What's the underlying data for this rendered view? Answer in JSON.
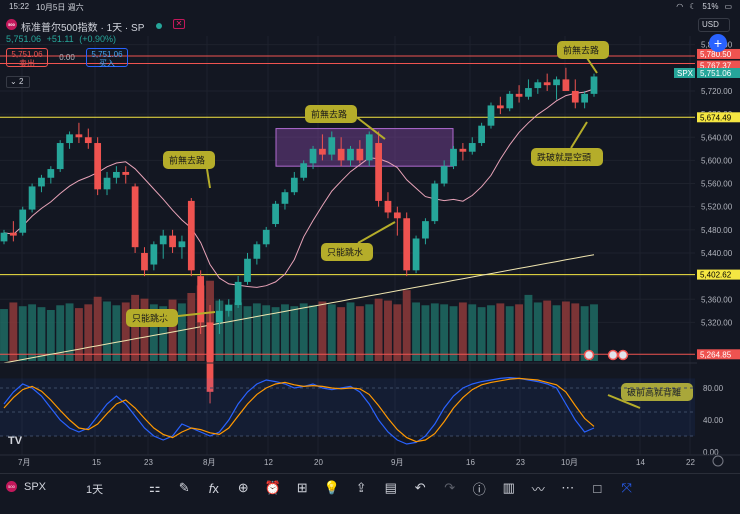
{
  "status_bar": {
    "time": "15:22",
    "date": "10月5日 週六",
    "battery": "51%"
  },
  "symbol": {
    "logo_text": "500",
    "title": "标准普尔500指数 · 1天 · SP",
    "price_line": [
      "5,751.06",
      "+51.11",
      "(+0.90%)"
    ],
    "sell_price": "5,751.06",
    "sell_label": "卖出",
    "spread": "0.00",
    "buy_price": "5,751.06",
    "buy_label": "买入",
    "indicator_count": "2",
    "currency": "USD"
  },
  "colors": {
    "up": "#26a69a",
    "down": "#ef5350",
    "yellow": "#f5e642",
    "annot": "#b5ad2a",
    "accent": "#2962ff",
    "bg": "#131722"
  },
  "annotations": [
    "前無去路",
    "只能跳水",
    "前無去路",
    "只能跳水",
    "前無去路",
    "跌破就是空頭",
    "破前高就背離"
  ],
  "price_axis": {
    "ticks": [
      "5,800.00",
      "5,720.00",
      "5,680.00",
      "5,640.00",
      "5,600.00",
      "5,560.00",
      "5,520.00",
      "5,480.00",
      "5,440.00",
      "5,400.00",
      "5,360.00",
      "5,320.00"
    ],
    "labels": [
      {
        "text": "5,780.50",
        "kind": "red"
      },
      {
        "text": "5,767.37",
        "kind": "red"
      },
      {
        "text": "SPX",
        "kind": "sym"
      },
      {
        "text": "5,751.06",
        "kind": "last"
      },
      {
        "text": "5,674.49",
        "kind": "yellow"
      },
      {
        "text": "5,402.62",
        "kind": "yellow"
      },
      {
        "text": "5,264.85",
        "kind": "red"
      }
    ]
  },
  "osc_axis": [
    "80.00",
    "40.00",
    "0.00"
  ],
  "time_axis": [
    "7月",
    "15",
    "23",
    "8月",
    "12",
    "20",
    "9月",
    "16",
    "23",
    "10月",
    "14",
    "22"
  ],
  "chart_data": {
    "type": "candlestick",
    "ohlc": [
      [
        5460,
        5480,
        5455,
        5475
      ],
      [
        5475,
        5495,
        5460,
        5470
      ],
      [
        5475,
        5520,
        5470,
        5515
      ],
      [
        5515,
        5560,
        5510,
        5555
      ],
      [
        5555,
        5575,
        5545,
        5570
      ],
      [
        5570,
        5590,
        5560,
        5585
      ],
      [
        5585,
        5635,
        5580,
        5630
      ],
      [
        5630,
        5650,
        5620,
        5645
      ],
      [
        5645,
        5665,
        5630,
        5640
      ],
      [
        5640,
        5655,
        5620,
        5630
      ],
      [
        5630,
        5640,
        5540,
        5550
      ],
      [
        5550,
        5580,
        5540,
        5570
      ],
      [
        5570,
        5590,
        5560,
        5580
      ],
      [
        5580,
        5590,
        5560,
        5575
      ],
      [
        5555,
        5560,
        5440,
        5450
      ],
      [
        5440,
        5450,
        5400,
        5410
      ],
      [
        5420,
        5460,
        5410,
        5455
      ],
      [
        5455,
        5480,
        5430,
        5470
      ],
      [
        5470,
        5480,
        5440,
        5450
      ],
      [
        5450,
        5470,
        5430,
        5460
      ],
      [
        5530,
        5535,
        5400,
        5410
      ],
      [
        5400,
        5410,
        5300,
        5320
      ],
      [
        5320,
        5350,
        5180,
        5200
      ],
      [
        5320,
        5360,
        5300,
        5340
      ],
      [
        5340,
        5360,
        5330,
        5350
      ],
      [
        5350,
        5400,
        5345,
        5390
      ],
      [
        5390,
        5440,
        5385,
        5430
      ],
      [
        5430,
        5460,
        5420,
        5455
      ],
      [
        5455,
        5485,
        5450,
        5480
      ],
      [
        5490,
        5530,
        5485,
        5525
      ],
      [
        5525,
        5550,
        5515,
        5545
      ],
      [
        5545,
        5580,
        5540,
        5570
      ],
      [
        5570,
        5600,
        5565,
        5595
      ],
      [
        5595,
        5625,
        5585,
        5620
      ],
      [
        5620,
        5645,
        5600,
        5610
      ],
      [
        5610,
        5650,
        5600,
        5640
      ],
      [
        5620,
        5640,
        5590,
        5600
      ],
      [
        5600,
        5625,
        5590,
        5620
      ],
      [
        5620,
        5635,
        5595,
        5600
      ],
      [
        5600,
        5650,
        5590,
        5645
      ],
      [
        5630,
        5650,
        5520,
        5530
      ],
      [
        5530,
        5545,
        5500,
        5510
      ],
      [
        5510,
        5520,
        5470,
        5500
      ],
      [
        5500,
        5510,
        5400,
        5410
      ],
      [
        5410,
        5470,
        5405,
        5465
      ],
      [
        5465,
        5500,
        5455,
        5495
      ],
      [
        5495,
        5565,
        5490,
        5560
      ],
      [
        5560,
        5600,
        5555,
        5590
      ],
      [
        5590,
        5625,
        5585,
        5620
      ],
      [
        5620,
        5630,
        5600,
        5615
      ],
      [
        5615,
        5640,
        5610,
        5630
      ],
      [
        5630,
        5665,
        5625,
        5660
      ],
      [
        5660,
        5700,
        5655,
        5695
      ],
      [
        5695,
        5710,
        5680,
        5690
      ],
      [
        5690,
        5720,
        5685,
        5715
      ],
      [
        5715,
        5730,
        5700,
        5710
      ],
      [
        5710,
        5740,
        5705,
        5725
      ],
      [
        5725,
        5740,
        5715,
        5735
      ],
      [
        5735,
        5750,
        5720,
        5730
      ],
      [
        5730,
        5745,
        5705,
        5740
      ],
      [
        5740,
        5760,
        5725,
        5720
      ],
      [
        5720,
        5740,
        5690,
        5700
      ],
      [
        5700,
        5720,
        5690,
        5715
      ],
      [
        5715,
        5750,
        5710,
        5745
      ]
    ],
    "volume": [
      55,
      62,
      58,
      60,
      57,
      54,
      59,
      61,
      56,
      60,
      68,
      63,
      59,
      62,
      70,
      66,
      60,
      58,
      65,
      61,
      72,
      80,
      85,
      64,
      60,
      62,
      58,
      61,
      59,
      57,
      60,
      58,
      61,
      59,
      63,
      60,
      57,
      62,
      58,
      60,
      66,
      64,
      60,
      75,
      62,
      59,
      61,
      60,
      58,
      62,
      60,
      57,
      59,
      61,
      58,
      60,
      70,
      62,
      64,
      59,
      63,
      61,
      58,
      60
    ],
    "stoch_k": [
      60,
      75,
      85,
      80,
      70,
      55,
      40,
      30,
      25,
      30,
      45,
      60,
      70,
      60,
      45,
      30,
      20,
      15,
      20,
      35,
      30,
      25,
      20,
      25,
      40,
      60,
      75,
      85,
      90,
      88,
      85,
      80,
      82,
      85,
      80,
      78,
      80,
      82,
      75,
      60,
      40,
      25,
      15,
      10,
      12,
      20,
      35,
      55,
      70,
      80,
      85,
      88,
      90,
      92,
      93,
      92,
      90,
      88,
      85,
      80,
      60,
      40,
      25,
      30
    ],
    "stoch_d": [
      55,
      68,
      78,
      82,
      76,
      65,
      52,
      40,
      30,
      28,
      35,
      48,
      60,
      65,
      55,
      42,
      30,
      22,
      18,
      25,
      30,
      28,
      24,
      22,
      30,
      45,
      60,
      72,
      80,
      85,
      87,
      84,
      82,
      83,
      82,
      80,
      79,
      80,
      79,
      72,
      58,
      42,
      28,
      18,
      13,
      15,
      23,
      38,
      55,
      68,
      78,
      84,
      87,
      89,
      91,
      92,
      91,
      90,
      87,
      84,
      75,
      58,
      42,
      32
    ]
  }
}
